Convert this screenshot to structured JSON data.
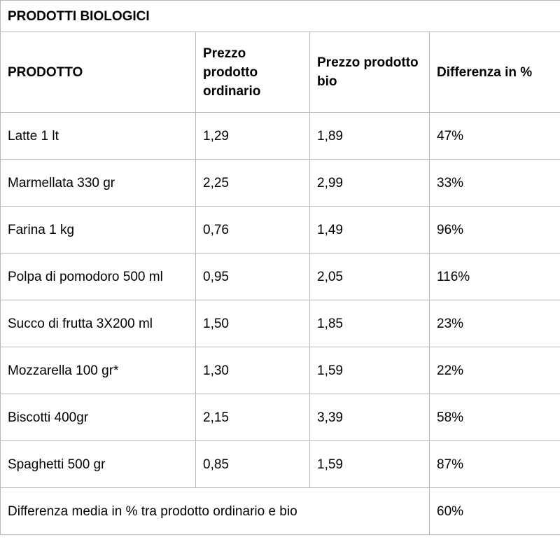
{
  "table": {
    "title": "PRODOTTI BIOLOGICI",
    "headers": [
      "PRODOTTO",
      "Prezzo prodotto ordinario",
      "Prezzo prodotto bio",
      "Differenza in %"
    ],
    "rows": [
      [
        "Latte 1 lt",
        "1,29",
        "1,89",
        "47%"
      ],
      [
        "Marmellata 330 gr",
        "2,25",
        "2,99",
        "33%"
      ],
      [
        "Farina 1 kg",
        "0,76",
        "1,49",
        "96%"
      ],
      [
        "Polpa di pomodoro 500 ml",
        "0,95",
        "2,05",
        "116%"
      ],
      [
        "Succo di frutta 3X200 ml",
        "1,50",
        "1,85",
        "23%"
      ],
      [
        "Mozzarella 100 gr*",
        "1,30",
        "1,59",
        "22%"
      ],
      [
        "Biscotti 400gr",
        "2,15",
        "3,39",
        "58%"
      ],
      [
        "Spaghetti 500 gr",
        "0,85",
        "1,59",
        "87%"
      ]
    ],
    "summary": {
      "label": "Differenza media in % tra prodotto ordinario e bio",
      "value": "60%"
    }
  }
}
